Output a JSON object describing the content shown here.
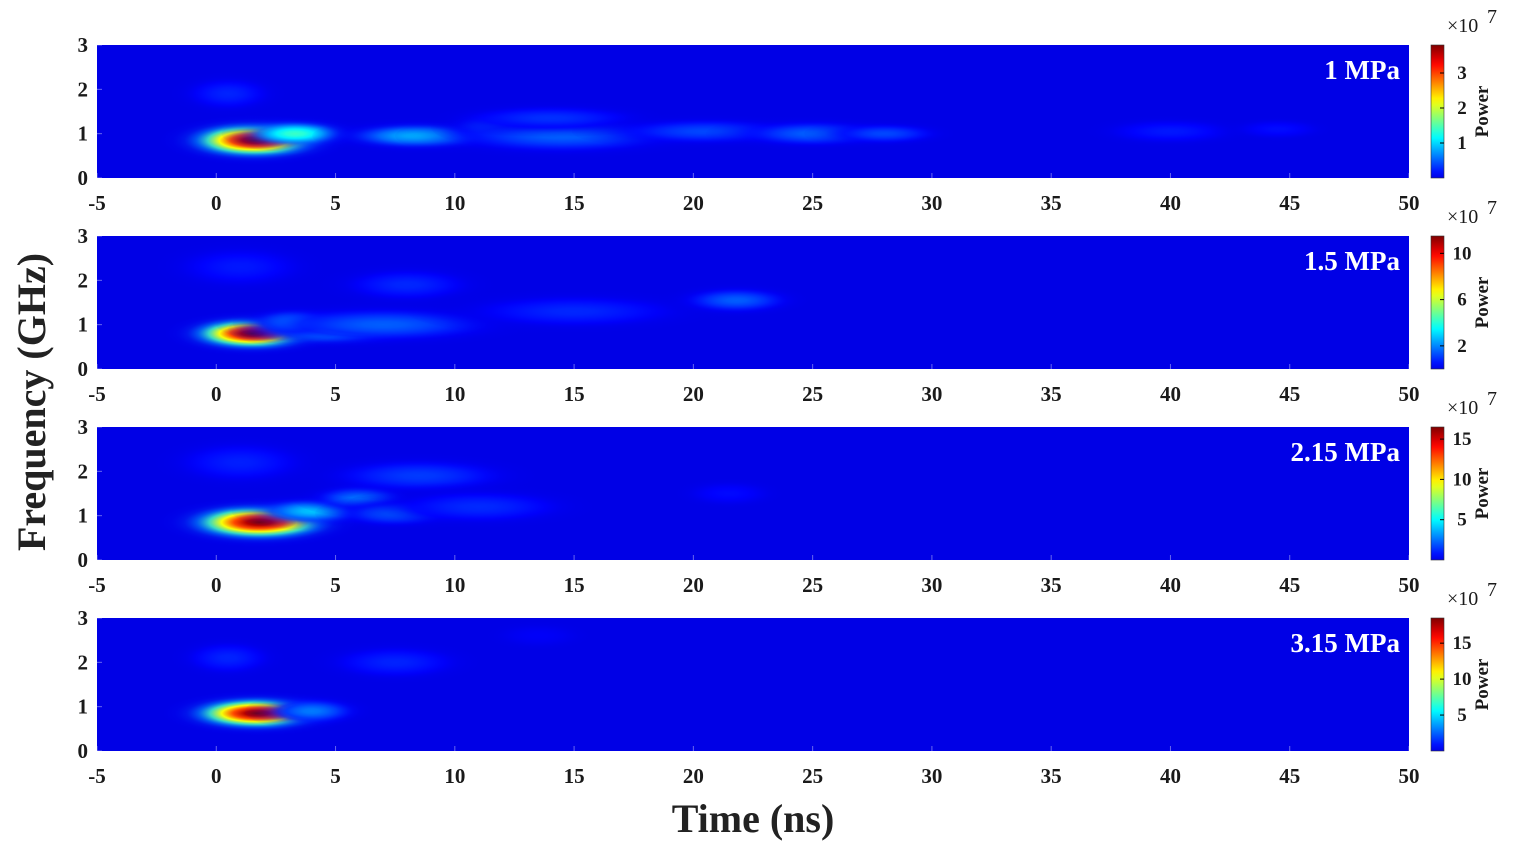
{
  "chart_data": {
    "type": "heatmap",
    "xlabel": "Time (ns)",
    "ylabel": "Frequency (GHz)",
    "xlim": [
      -5,
      50
    ],
    "ylim": [
      0,
      3
    ],
    "x_ticks": [
      "-5",
      "0",
      "5",
      "10",
      "15",
      "20",
      "25",
      "30",
      "35",
      "40",
      "45",
      "50"
    ],
    "y_ticks": [
      "0",
      "1",
      "2",
      "3"
    ],
    "colormap": "jet",
    "colorbar_label": "Power",
    "colorbar_multiplier": "×10",
    "colorbar_exponent": "7",
    "colors": {
      "background": "#00008f",
      "peak": "#d40000",
      "axis_text": "#1a1a1a",
      "panel_label": "#ffffff"
    },
    "panels": [
      {
        "label": "1 MPa",
        "colorbar_max": 3.8,
        "colorbar_ticks": [
          "1",
          "2",
          "3"
        ],
        "hotspots": [
          {
            "t": 1.6,
            "f": 0.85,
            "st": 1.4,
            "sf": 0.2,
            "power": 3.8
          },
          {
            "t": 3.3,
            "f": 1.0,
            "st": 1.1,
            "sf": 0.15,
            "power": 1.4
          },
          {
            "t": 8.5,
            "f": 0.95,
            "st": 1.6,
            "sf": 0.15,
            "power": 0.9
          },
          {
            "t": 11.8,
            "f": 1.15,
            "st": 1.0,
            "sf": 0.15,
            "power": 0.6
          },
          {
            "t": 14.5,
            "f": 0.95,
            "st": 2.5,
            "sf": 0.2,
            "power": 0.5
          },
          {
            "t": 14.0,
            "f": 1.35,
            "st": 2.0,
            "sf": 0.15,
            "power": 0.3
          },
          {
            "t": 20.5,
            "f": 1.05,
            "st": 2.0,
            "sf": 0.15,
            "power": 0.4
          },
          {
            "t": 25.0,
            "f": 1.0,
            "st": 1.6,
            "sf": 0.15,
            "power": 0.5
          },
          {
            "t": 28.0,
            "f": 1.0,
            "st": 1.2,
            "sf": 0.12,
            "power": 0.4
          },
          {
            "t": 40.0,
            "f": 1.05,
            "st": 1.5,
            "sf": 0.15,
            "power": 0.2
          },
          {
            "t": 44.5,
            "f": 1.1,
            "st": 1.0,
            "sf": 0.12,
            "power": 0.15
          },
          {
            "t": 0.5,
            "f": 1.9,
            "st": 1.0,
            "sf": 0.2,
            "power": 0.25
          }
        ]
      },
      {
        "label": "1.5 MPa",
        "colorbar_max": 11.5,
        "colorbar_ticks": [
          "2",
          "6",
          "10"
        ],
        "hotspots": [
          {
            "t": 1.5,
            "f": 0.8,
            "st": 1.3,
            "sf": 0.18,
            "power": 11.5
          },
          {
            "t": 4.7,
            "f": 0.9,
            "st": 1.5,
            "sf": 0.17,
            "power": 4.0
          },
          {
            "t": 3.2,
            "f": 1.05,
            "st": 0.9,
            "sf": 0.15,
            "power": 2.5
          },
          {
            "t": 7.0,
            "f": 1.0,
            "st": 2.5,
            "sf": 0.2,
            "power": 1.5
          },
          {
            "t": 8.0,
            "f": 1.9,
            "st": 1.5,
            "sf": 0.2,
            "power": 0.8
          },
          {
            "t": 15.0,
            "f": 1.3,
            "st": 2.5,
            "sf": 0.2,
            "power": 0.8
          },
          {
            "t": 21.8,
            "f": 1.55,
            "st": 1.2,
            "sf": 0.15,
            "power": 1.5
          },
          {
            "t": 1.0,
            "f": 2.3,
            "st": 1.5,
            "sf": 0.25,
            "power": 0.6
          }
        ]
      },
      {
        "label": "2.15 MPa",
        "colorbar_max": 16.5,
        "colorbar_ticks": [
          "5",
          "10",
          "15"
        ],
        "hotspots": [
          {
            "t": 1.8,
            "f": 0.85,
            "st": 1.5,
            "sf": 0.2,
            "power": 16.5
          },
          {
            "t": 4.0,
            "f": 1.1,
            "st": 1.2,
            "sf": 0.15,
            "power": 4.0
          },
          {
            "t": 6.0,
            "f": 1.4,
            "st": 1.0,
            "sf": 0.15,
            "power": 2.5
          },
          {
            "t": 7.5,
            "f": 1.05,
            "st": 1.2,
            "sf": 0.15,
            "power": 2.2
          },
          {
            "t": 8.5,
            "f": 1.9,
            "st": 2.0,
            "sf": 0.2,
            "power": 1.5
          },
          {
            "t": 11.0,
            "f": 1.2,
            "st": 2.0,
            "sf": 0.2,
            "power": 1.2
          },
          {
            "t": 1.0,
            "f": 2.2,
            "st": 1.5,
            "sf": 0.25,
            "power": 1.0
          },
          {
            "t": 21.5,
            "f": 1.5,
            "st": 1.0,
            "sf": 0.15,
            "power": 0.6
          }
        ]
      },
      {
        "label": "3.15 MPa",
        "colorbar_max": 18.5,
        "colorbar_ticks": [
          "5",
          "10",
          "15"
        ],
        "hotspots": [
          {
            "t": 1.7,
            "f": 0.85,
            "st": 1.4,
            "sf": 0.18,
            "power": 18.5
          },
          {
            "t": 4.0,
            "f": 0.9,
            "st": 1.0,
            "sf": 0.15,
            "power": 3.0
          },
          {
            "t": 7.5,
            "f": 2.0,
            "st": 1.5,
            "sf": 0.2,
            "power": 1.2
          },
          {
            "t": 0.5,
            "f": 2.1,
            "st": 1.0,
            "sf": 0.2,
            "power": 1.2
          },
          {
            "t": 13.5,
            "f": 2.6,
            "st": 1.0,
            "sf": 0.15,
            "power": 0.4
          }
        ]
      }
    ]
  }
}
